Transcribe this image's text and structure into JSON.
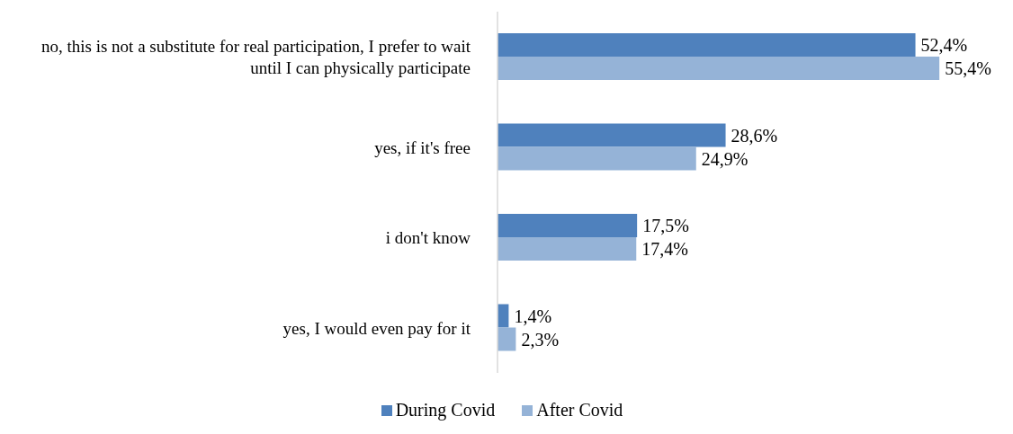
{
  "chart_data": {
    "type": "bar",
    "orientation": "horizontal",
    "categories": [
      "no, this is not a substitute for real participation, I prefer to wait until I can physically participate",
      "yes, if it's free",
      "i don't know",
      "yes, I would even pay for it"
    ],
    "series": [
      {
        "name": "During Covid",
        "color": "#4f81bd",
        "values": [
          52.4,
          28.6,
          17.5,
          1.4
        ],
        "value_labels": [
          "52,4%",
          "28,6%",
          "17,5%",
          "1,4%"
        ]
      },
      {
        "name": "After Covid",
        "color": "#95b3d7",
        "values": [
          55.4,
          24.9,
          17.4,
          2.3
        ],
        "value_labels": [
          "55,4%",
          "24,9%",
          "17,4%",
          "2,3%"
        ]
      }
    ],
    "legend": "bottom",
    "grid": false
  }
}
